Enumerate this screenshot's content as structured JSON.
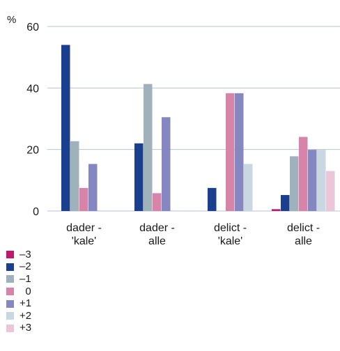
{
  "chart_data": {
    "type": "bar",
    "unit_label": "%",
    "categories": [
      [
        "dader -",
        "'kale'"
      ],
      [
        "dader -",
        "alle"
      ],
      [
        "delict -",
        "'kale'"
      ],
      [
        "delict -",
        "alle"
      ]
    ],
    "ylim": [
      0,
      60
    ],
    "yticks": [
      0,
      20,
      40,
      60
    ],
    "grid": true,
    "legend_position": "bottom-left",
    "series": [
      {
        "name": "–3",
        "color": "#c0176f",
        "values": [
          0,
          0,
          0,
          0.6
        ]
      },
      {
        "name": "–2",
        "color": "#1b3f8f",
        "values": [
          54,
          22,
          7.5,
          5.2
        ]
      },
      {
        "name": "–1",
        "color": "#9fb2bb",
        "values": [
          22.7,
          41.3,
          0,
          17.8
        ]
      },
      {
        "name": "  0",
        "color": "#d884a8",
        "values": [
          7.5,
          5.8,
          38.3,
          24.1
        ]
      },
      {
        "name": "+1",
        "color": "#8587c0",
        "values": [
          15.3,
          30.5,
          38.3,
          19.9
        ]
      },
      {
        "name": "+2",
        "color": "#c9d7e3",
        "values": [
          0,
          0,
          15.3,
          19.9
        ]
      },
      {
        "name": "+3",
        "color": "#ebc5d8",
        "values": [
          0,
          0,
          0,
          13.0
        ]
      }
    ]
  }
}
